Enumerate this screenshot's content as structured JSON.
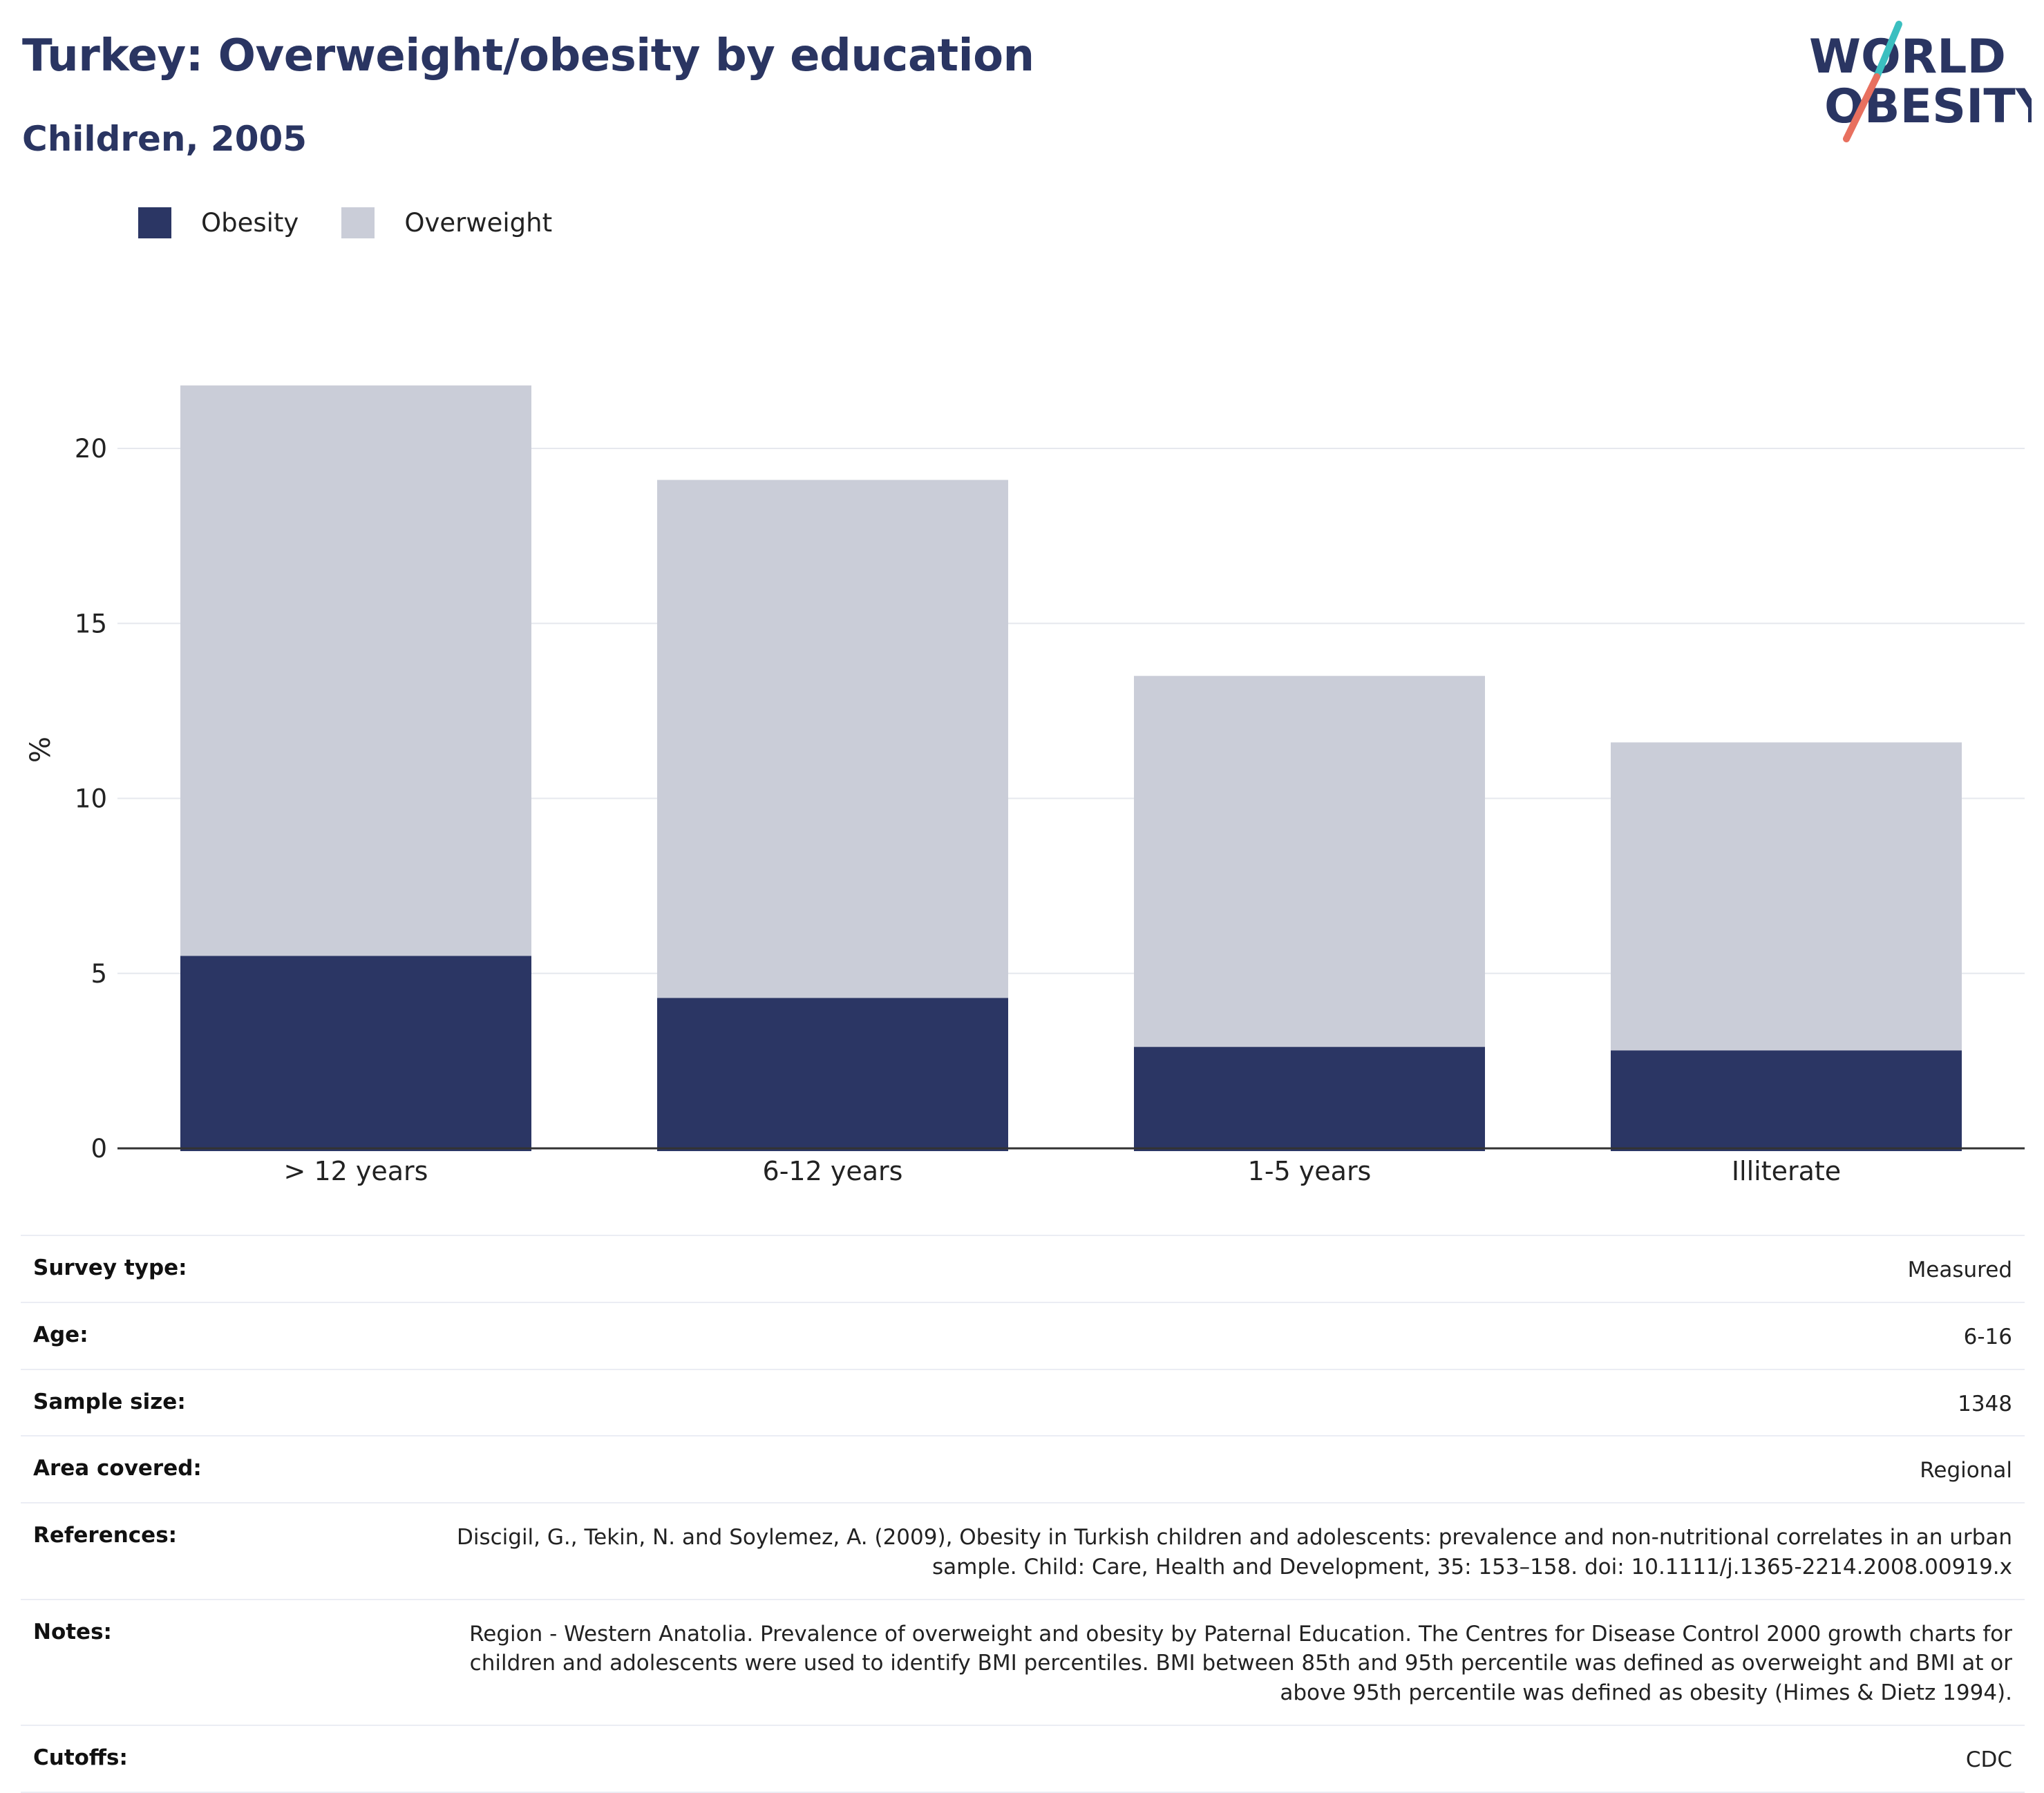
{
  "header": {
    "title": "Turkey: Overweight/obesity by education",
    "subtitle": "Children, 2005",
    "logo_text": [
      "WORLD",
      "OBESITY"
    ]
  },
  "colors": {
    "obesity": "#2b3664",
    "overweight": "#cacdd8",
    "title": "#2a3562",
    "logo_teal": "#3bbfc0",
    "logo_coral": "#e8705f"
  },
  "chart_data": {
    "type": "bar",
    "stacked": true,
    "categories": [
      "> 12 years",
      "6-12 years",
      "1-5 years",
      "Illiterate"
    ],
    "series": [
      {
        "name": "Obesity",
        "values": [
          5.5,
          4.3,
          2.9,
          2.8
        ]
      },
      {
        "name": "Overweight",
        "values": [
          16.3,
          14.8,
          10.6,
          8.8
        ]
      }
    ],
    "ylabel": "%",
    "xlabel": "",
    "ylim": [
      0,
      22
    ],
    "yticks": [
      0,
      5,
      10,
      15,
      20
    ],
    "grid": true,
    "legend_position": "top-left"
  },
  "info": [
    {
      "label": "Survey type:",
      "value": "Measured"
    },
    {
      "label": "Age:",
      "value": "6-16"
    },
    {
      "label": "Sample size:",
      "value": "1348"
    },
    {
      "label": "Area covered:",
      "value": "Regional"
    },
    {
      "label": "References:",
      "value": "Discigil, G., Tekin, N. and Soylemez, A. (2009), Obesity in Turkish children and adolescents: prevalence and non-nutritional correlates in an urban sample. Child: Care, Health and Development, 35: 153–158. doi: 10.1111/j.1365-2214.2008.00919.x"
    },
    {
      "label": "Notes:",
      "value": "Region - Western Anatolia. Prevalence of overweight and obesity by Paternal Education. The Centres for Disease Control 2000 growth charts for children and adolescents were used to identify BMI percentiles. BMI between 85th and 95th percentile was defined as overweight and BMI at or above 95th percentile was defined as obesity (Himes & Dietz 1994)."
    },
    {
      "label": "Cutoffs:",
      "value": "CDC"
    }
  ]
}
